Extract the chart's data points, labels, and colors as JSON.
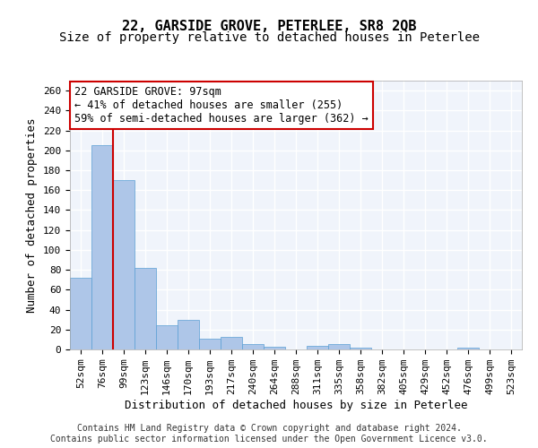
{
  "title1": "22, GARSIDE GROVE, PETERLEE, SR8 2QB",
  "title2": "Size of property relative to detached houses in Peterlee",
  "xlabel": "Distribution of detached houses by size in Peterlee",
  "ylabel": "Number of detached properties",
  "footnote1": "Contains HM Land Registry data © Crown copyright and database right 2024.",
  "footnote2": "Contains public sector information licensed under the Open Government Licence v3.0.",
  "annotation_line1": "22 GARSIDE GROVE: 97sqm",
  "annotation_line2": "← 41% of detached houses are smaller (255)",
  "annotation_line3": "59% of semi-detached houses are larger (362) →",
  "bar_color": "#aec6e8",
  "bar_edge_color": "#5a9fd4",
  "vline_color": "#cc0000",
  "vline_x": 2,
  "categories": [
    "52sqm",
    "76sqm",
    "99sqm",
    "123sqm",
    "146sqm",
    "170sqm",
    "193sqm",
    "217sqm",
    "240sqm",
    "264sqm",
    "288sqm",
    "311sqm",
    "335sqm",
    "358sqm",
    "382sqm",
    "405sqm",
    "429sqm",
    "452sqm",
    "476sqm",
    "499sqm",
    "523sqm"
  ],
  "values": [
    72,
    205,
    170,
    82,
    24,
    30,
    11,
    13,
    5,
    3,
    0,
    4,
    5,
    2,
    0,
    0,
    0,
    0,
    2,
    0,
    0
  ],
  "ylim": [
    0,
    270
  ],
  "yticks": [
    0,
    20,
    40,
    60,
    80,
    100,
    120,
    140,
    160,
    180,
    200,
    220,
    240,
    260
  ],
  "background_color": "#f0f4fb",
  "grid_color": "#ffffff",
  "title1_fontsize": 11,
  "title2_fontsize": 10,
  "xlabel_fontsize": 9,
  "ylabel_fontsize": 9,
  "tick_fontsize": 8,
  "annotation_fontsize": 8.5,
  "footnote_fontsize": 7
}
